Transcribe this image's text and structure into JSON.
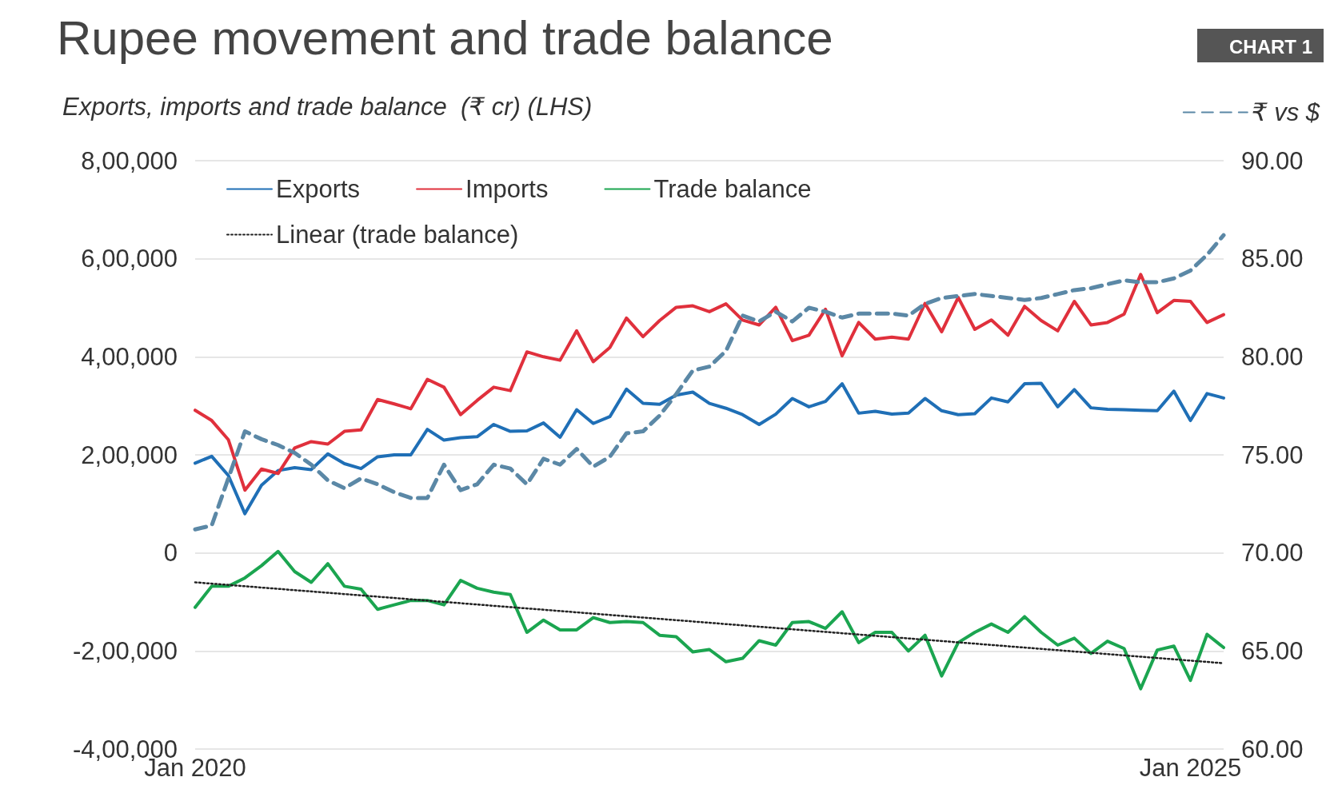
{
  "chart_data": {
    "type": "line",
    "title": "Rupee movement and trade balance",
    "ylabel": "Exports, imports and trade balance  (₹ cr) (LHS)",
    "annotations": [
      "CHART 1"
    ],
    "categories": [
      "Jan 2020",
      null,
      null,
      null,
      null,
      null,
      null,
      null,
      null,
      null,
      null,
      null,
      null,
      null,
      null,
      null,
      null,
      null,
      null,
      null,
      null,
      null,
      null,
      null,
      null,
      null,
      null,
      null,
      null,
      null,
      null,
      null,
      null,
      null,
      null,
      null,
      null,
      null,
      null,
      null,
      null,
      null,
      null,
      null,
      null,
      null,
      null,
      null,
      null,
      null,
      null,
      null,
      null,
      null,
      null,
      null,
      null,
      null,
      null,
      null,
      "Jan 2025",
      null,
      null
    ],
    "ylim": [
      -400000,
      800000
    ],
    "yticks": [
      {
        "value": -400000,
        "label": "-4,00,000"
      },
      {
        "value": -200000,
        "label": "-2,00,000"
      },
      0,
      {
        "value": 200000,
        "label": "2,00,000"
      },
      {
        "value": 400000,
        "label": "4,00,000"
      },
      {
        "value": 600000,
        "label": "6,00,000"
      },
      {
        "value": 800000,
        "label": "8,00,000"
      }
    ],
    "y2lim": [
      60,
      90
    ],
    "y2ticks": [
      {
        "value": 60,
        "label": "60.00"
      },
      {
        "value": 65,
        "label": "65.00"
      },
      {
        "value": 70,
        "label": "70.00"
      },
      {
        "value": 75,
        "label": "75.00"
      },
      {
        "value": 80,
        "label": "80.00"
      },
      {
        "value": 85,
        "label": "85.00"
      },
      {
        "value": 90,
        "label": "90.00"
      }
    ],
    "grid": "y",
    "legend": "top",
    "marker": "none",
    "series": [
      {
        "name": "Exports",
        "color": "#1f6fb6",
        "values": [
          183000,
          197000,
          158000,
          80000,
          138000,
          168000,
          174000,
          170000,
          202000,
          182000,
          172000,
          196000,
          200000,
          200000,
          252000,
          230000,
          235000,
          237000,
          262000,
          248000,
          249000,
          265000,
          236000,
          292000,
          264000,
          278000,
          334000,
          305000,
          303000,
          322000,
          328000,
          305000,
          295000,
          282000,
          262000,
          283000,
          315000,
          298000,
          309000,
          345000,
          285000,
          289000,
          283000,
          285000,
          315000,
          290000,
          282000,
          284000,
          316000,
          308000,
          345000,
          346000,
          298000,
          333000,
          296000,
          293000,
          292000,
          291000,
          290000,
          330000,
          270000,
          325000,
          316000
        ]
      },
      {
        "name": "Imports",
        "color": "#e0303c",
        "values": [
          291000,
          270000,
          231000,
          128000,
          171000,
          162000,
          214000,
          227000,
          222000,
          248000,
          251000,
          313000,
          304000,
          294000,
          354000,
          338000,
          282000,
          311000,
          338000,
          331000,
          410000,
          400000,
          393000,
          453000,
          390000,
          419000,
          479000,
          441000,
          474000,
          501000,
          504000,
          492000,
          508000,
          475000,
          465000,
          501000,
          433000,
          444000,
          497000,
          402000,
          470000,
          436000,
          440000,
          436000,
          509000,
          451000,
          521000,
          456000,
          475000,
          444000,
          503000,
          474000,
          453000,
          513000,
          465000,
          470000,
          487000,
          568000,
          490000,
          515000,
          513000,
          470000,
          486000
        ]
      },
      {
        "name": "Trade balance",
        "color": "#1ba550",
        "values": [
          -111000,
          -68000,
          -68000,
          -51000,
          -26000,
          3000,
          -38000,
          -60000,
          -22000,
          -68000,
          -74000,
          -115000,
          -106000,
          -97000,
          -97000,
          -106000,
          -56000,
          -72000,
          -80000,
          -85000,
          -162000,
          -137000,
          -157000,
          -157000,
          -132000,
          -142000,
          -140000,
          -142000,
          -168000,
          -171000,
          -202000,
          -197000,
          -222000,
          -215000,
          -179000,
          -188000,
          -142000,
          -140000,
          -154000,
          -120000,
          -183000,
          -162000,
          -162000,
          -200000,
          -168000,
          -251000,
          -183000,
          -162000,
          -145000,
          -162000,
          -130000,
          -162000,
          -188000,
          -174000,
          -205000,
          -180000,
          -195000,
          -277000,
          -198000,
          -190000,
          -260000,
          -166000,
          -193000
        ]
      },
      {
        "name": "Linear (trade balance)",
        "color": "#222222",
        "line_style": "dotted",
        "values": [
          -60000,
          null,
          null,
          null,
          null,
          null,
          null,
          null,
          null,
          null,
          null,
          null,
          null,
          null,
          null,
          null,
          null,
          null,
          null,
          null,
          null,
          null,
          null,
          null,
          null,
          null,
          null,
          null,
          null,
          null,
          null,
          null,
          null,
          null,
          null,
          null,
          null,
          null,
          null,
          null,
          null,
          null,
          null,
          null,
          null,
          null,
          null,
          null,
          null,
          null,
          null,
          null,
          null,
          null,
          null,
          null,
          null,
          null,
          null,
          null,
          null,
          null,
          -225000
        ]
      },
      {
        "name": "₹ vs $",
        "color": "#5b88a6",
        "axis": "y2",
        "line_style": "dashed",
        "values": [
          71.2,
          71.4,
          73.8,
          76.2,
          75.8,
          75.5,
          75.1,
          74.5,
          73.7,
          73.3,
          73.8,
          73.5,
          73.1,
          72.8,
          72.8,
          74.5,
          73.2,
          73.5,
          74.5,
          74.3,
          73.5,
          74.8,
          74.5,
          75.3,
          74.4,
          74.9,
          76.1,
          76.2,
          77.0,
          78.1,
          79.3,
          79.5,
          80.3,
          82.1,
          81.8,
          82.3,
          81.8,
          82.5,
          82.3,
          82.0,
          82.2,
          82.2,
          82.2,
          82.1,
          82.7,
          83.0,
          83.1,
          83.2,
          83.1,
          83.0,
          82.9,
          83.0,
          83.2,
          83.4,
          83.5,
          83.7,
          83.9,
          83.8,
          83.8,
          84.0,
          84.4,
          85.2,
          86.2
        ]
      }
    ]
  }
}
